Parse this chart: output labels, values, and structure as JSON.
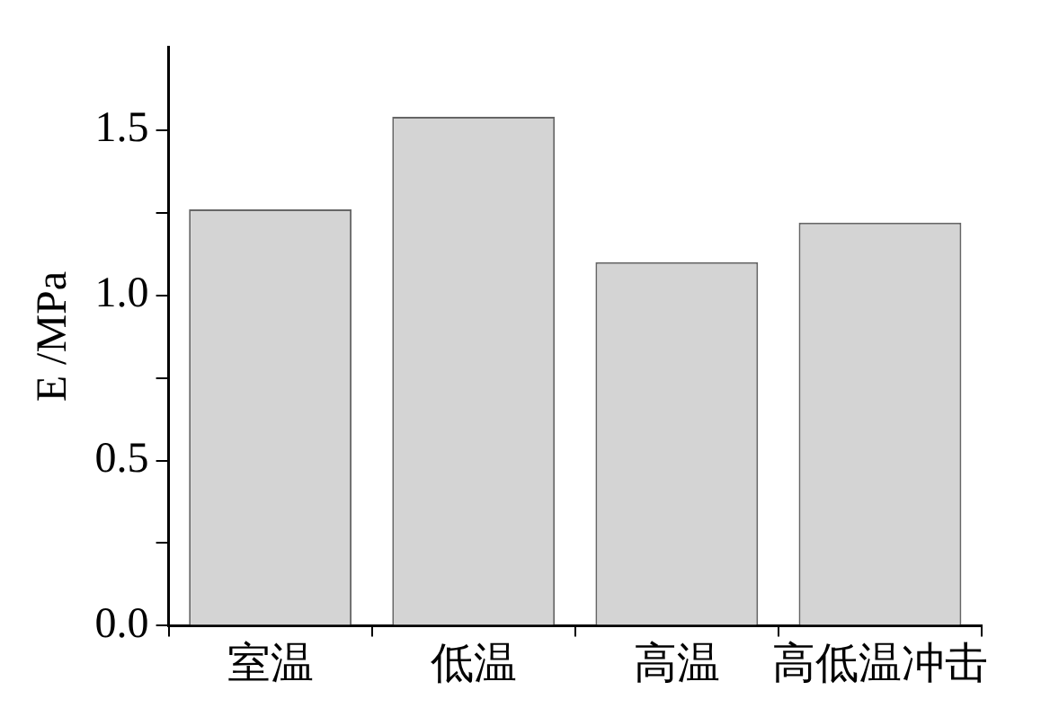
{
  "chart_data": {
    "type": "bar",
    "ylabel": "E /MPa",
    "categories": [
      "室温",
      "低温",
      "高温",
      "高低温冲击"
    ],
    "values": [
      1.26,
      1.54,
      1.1,
      1.22
    ],
    "color": "#d4d4d4",
    "ylim": [
      0,
      1.75
    ],
    "yticks": [
      {
        "value": 0,
        "label": "0.0"
      },
      {
        "value": 0.25,
        "label": null
      },
      {
        "value": 0.5,
        "label": "0.5"
      },
      {
        "value": 0.75,
        "label": null
      },
      {
        "value": 1,
        "label": "1.0"
      },
      {
        "value": 1.25,
        "label": null
      },
      {
        "value": 1.5,
        "label": "1.5"
      }
    ],
    "grid": false,
    "legend": false
  }
}
